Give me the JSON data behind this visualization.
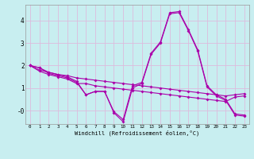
{
  "xlabel": "Windchill (Refroidissement éolien,°C)",
  "x": [
    0,
    1,
    2,
    3,
    4,
    5,
    6,
    7,
    8,
    9,
    10,
    11,
    12,
    13,
    14,
    15,
    16,
    17,
    18,
    19,
    20,
    21,
    22,
    23
  ],
  "line1": [
    2.0,
    1.9,
    1.7,
    1.6,
    1.5,
    1.3,
    0.7,
    0.85,
    0.85,
    -0.05,
    -0.4,
    1.1,
    1.25,
    2.55,
    3.05,
    4.35,
    4.4,
    3.6,
    2.7,
    1.1,
    0.7,
    0.5,
    -0.15,
    -0.2
  ],
  "line2": [
    2.0,
    1.9,
    1.65,
    1.55,
    1.45,
    1.25,
    0.7,
    0.85,
    0.85,
    -0.1,
    -0.5,
    1.0,
    1.2,
    2.5,
    3.0,
    4.3,
    4.35,
    3.55,
    2.65,
    1.05,
    0.65,
    0.45,
    -0.2,
    -0.25
  ],
  "line3": [
    2.0,
    1.75,
    1.6,
    1.5,
    1.4,
    1.2,
    1.2,
    1.1,
    1.05,
    1.0,
    0.95,
    0.9,
    0.85,
    0.8,
    0.75,
    0.7,
    0.65,
    0.6,
    0.55,
    0.5,
    0.45,
    0.4,
    0.6,
    0.65
  ],
  "line4": [
    2.0,
    1.8,
    1.7,
    1.6,
    1.55,
    1.45,
    1.4,
    1.35,
    1.3,
    1.25,
    1.2,
    1.15,
    1.1,
    1.05,
    1.0,
    0.95,
    0.9,
    0.85,
    0.8,
    0.75,
    0.7,
    0.65,
    0.7,
    0.75
  ],
  "line_color": "#aa00aa",
  "bg_color": "#c8eef0",
  "grid_color": "#ddbbdd",
  "ylim": [
    -0.6,
    4.7
  ],
  "yticks": [
    4,
    3,
    2,
    1,
    0
  ],
  "ytick_labels": [
    "4",
    "3",
    "2",
    "1",
    "-0"
  ],
  "marker": "D",
  "marker_size": 2.0,
  "line_width": 0.8
}
